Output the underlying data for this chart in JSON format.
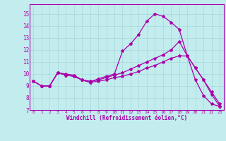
{
  "xlabel": "Windchill (Refroidissement éolien,°C)",
  "xlim": [
    -0.5,
    23.5
  ],
  "ylim": [
    7,
    15.8
  ],
  "yticks": [
    7,
    8,
    9,
    10,
    11,
    12,
    13,
    14,
    15
  ],
  "xticks": [
    0,
    1,
    2,
    3,
    4,
    5,
    6,
    7,
    8,
    9,
    10,
    11,
    12,
    13,
    14,
    15,
    16,
    17,
    18,
    19,
    20,
    21,
    22,
    23
  ],
  "background_color": "#c2ecee",
  "grid_color": "#a8d8da",
  "line_color": "#aa00aa",
  "line1_x": [
    0,
    1,
    2,
    3,
    4,
    5,
    6,
    7,
    8,
    9,
    10,
    11,
    12,
    13,
    14,
    15,
    16,
    17,
    18,
    19,
    20,
    21,
    22,
    23
  ],
  "line1_y": [
    9.4,
    9.0,
    9.0,
    10.1,
    10.0,
    9.9,
    9.5,
    9.3,
    9.6,
    9.8,
    10.0,
    11.9,
    12.5,
    13.3,
    14.4,
    15.0,
    14.8,
    14.3,
    13.7,
    11.5,
    9.5,
    8.2,
    7.5,
    7.3
  ],
  "line2_x": [
    0,
    1,
    2,
    3,
    4,
    5,
    6,
    7,
    8,
    9,
    10,
    11,
    12,
    13,
    14,
    15,
    16,
    17,
    18,
    19,
    20,
    21,
    22,
    23
  ],
  "line2_y": [
    9.4,
    9.0,
    9.0,
    10.1,
    9.9,
    9.8,
    9.5,
    9.4,
    9.5,
    9.7,
    9.9,
    10.1,
    10.4,
    10.7,
    11.0,
    11.3,
    11.6,
    12.0,
    12.7,
    11.5,
    10.5,
    9.5,
    8.5,
    7.5
  ],
  "line3_x": [
    0,
    1,
    2,
    3,
    4,
    5,
    6,
    7,
    8,
    9,
    10,
    11,
    12,
    13,
    14,
    15,
    16,
    17,
    18,
    19,
    20,
    21,
    22,
    23
  ],
  "line3_y": [
    9.4,
    9.0,
    9.0,
    10.1,
    9.9,
    9.8,
    9.5,
    9.3,
    9.4,
    9.5,
    9.7,
    9.8,
    10.0,
    10.2,
    10.5,
    10.7,
    11.0,
    11.3,
    11.5,
    11.5,
    10.5,
    9.5,
    8.3,
    7.3
  ]
}
